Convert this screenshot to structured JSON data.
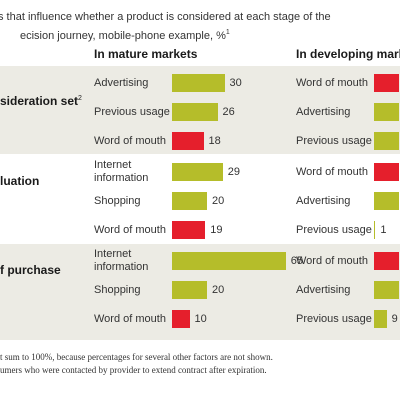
{
  "title": {
    "line1": "s that influence whether a product is considered at each stage of the",
    "line2": "ecision journey, mobile-phone example, %",
    "line2_sup": "1"
  },
  "colors": {
    "green": "#b5bd2a",
    "red": "#e51f2c",
    "band": "#ecebe4"
  },
  "chart_data": {
    "type": "bar",
    "orientation": "horizontal",
    "columns": [
      "In mature markets",
      "In developing marke"
    ],
    "sections": [
      {
        "label": "sideration set",
        "label_sup": "2",
        "mature": [
          {
            "label": "Advertising",
            "value": 30,
            "color": "green"
          },
          {
            "label": "Previous usage",
            "value": 26,
            "color": "green"
          },
          {
            "label": "Word of mouth",
            "value": 18,
            "color": "red"
          }
        ],
        "developing": [
          {
            "label": "Word of mouth",
            "value": null,
            "color": "red"
          },
          {
            "label": "Advertising",
            "value": null,
            "color": "green"
          },
          {
            "label": "Previous usage",
            "value": null,
            "color": "green"
          }
        ]
      },
      {
        "label": "luation",
        "label_sup": "",
        "mature": [
          {
            "label": "Internet information",
            "value": 29,
            "color": "green"
          },
          {
            "label": "Shopping",
            "value": 20,
            "color": "green"
          },
          {
            "label": "Word of mouth",
            "value": 19,
            "color": "red"
          }
        ],
        "developing": [
          {
            "label": "Word of mouth",
            "value": null,
            "color": "red"
          },
          {
            "label": "Advertising",
            "value": null,
            "color": "green"
          },
          {
            "label": "Previous usage",
            "value": 1,
            "color": "green"
          }
        ]
      },
      {
        "label": "f purchase",
        "label_sup": "",
        "mature": [
          {
            "label": "Internet information",
            "value": 65,
            "color": "green"
          },
          {
            "label": "Shopping",
            "value": 20,
            "color": "green"
          },
          {
            "label": "Word of mouth",
            "value": 10,
            "color": "red"
          }
        ],
        "developing": [
          {
            "label": "Word of mouth",
            "value": null,
            "color": "red"
          },
          {
            "label": "Advertising",
            "value": null,
            "color": "green"
          },
          {
            "label": "Previous usage",
            "value": 9,
            "color": "green"
          }
        ]
      }
    ]
  },
  "footnotes": {
    "line1": "t sum to 100%, because percentages for several other factors are not shown.",
    "line2": "umers who were contacted by provider to extend contract after expiration."
  }
}
